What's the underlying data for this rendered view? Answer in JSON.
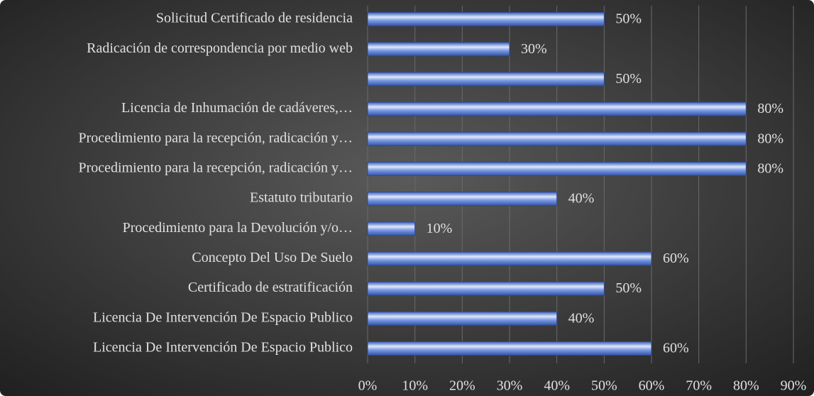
{
  "chart_data": {
    "type": "barh",
    "categories": [
      "Solicitud Certificado de residencia",
      "Radicación de correspondencia por medio web",
      null,
      "Licencia de Inhumación de cadáveres,…",
      "Procedimiento para la recepción, radicación y…",
      "Procedimiento para la recepción, radicación y…",
      "Estatuto tributario",
      "Procedimiento para la Devolución y/o…",
      "Concepto Del Uso De Suelo",
      "Certificado de estratificación",
      "Licencia De Intervención De Espacio Publico",
      "Licencia De Intervención De Espacio Publico"
    ],
    "values": [
      50,
      30,
      50,
      80,
      80,
      80,
      40,
      10,
      60,
      50,
      40,
      60
    ],
    "value_labels": [
      "50%",
      "30%",
      "50%",
      "80%",
      "80%",
      "80%",
      "40%",
      "10%",
      "60%",
      "50%",
      "40%",
      "60%"
    ],
    "color": "#5b7fd6",
    "xlim": [
      0,
      90
    ],
    "xticks": [
      {
        "value": 0,
        "label": "0%"
      },
      {
        "value": 10,
        "label": "10%"
      },
      {
        "value": 20,
        "label": "20%"
      },
      {
        "value": 30,
        "label": "30%"
      },
      {
        "value": 40,
        "label": "40%"
      },
      {
        "value": 50,
        "label": "50%"
      },
      {
        "value": 60,
        "label": "60%"
      },
      {
        "value": 70,
        "label": "70%"
      },
      {
        "value": 80,
        "label": "80%"
      },
      {
        "value": 90,
        "label": "90%"
      }
    ],
    "grid": true
  }
}
